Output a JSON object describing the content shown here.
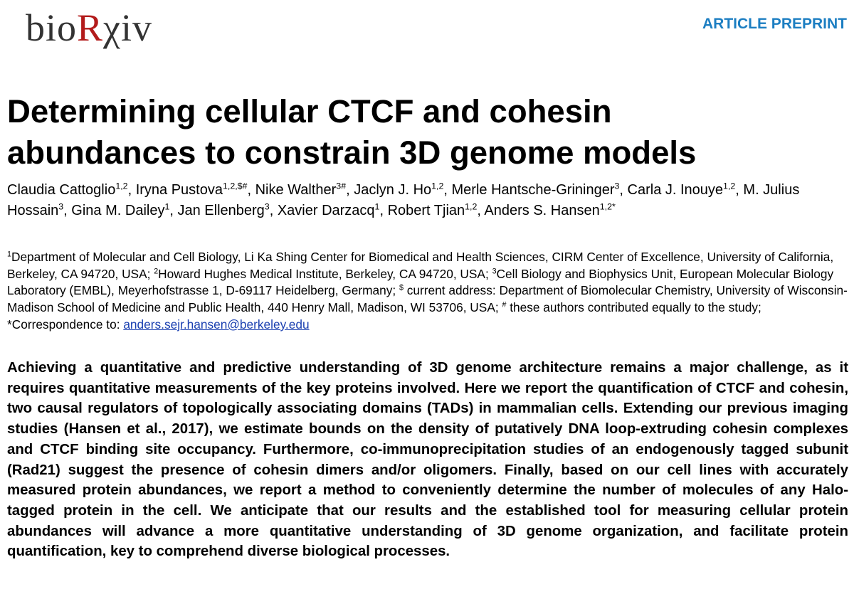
{
  "header": {
    "logo": [
      "bio",
      "R",
      "χiv"
    ],
    "label": "ARTICLE PREPRINT"
  },
  "title": "Determining cellular CTCF and cohesin abundances to constrain 3D genome models",
  "authors": {
    "separator": ", ",
    "list": [
      {
        "name": "Claudia Cattoglio",
        "sup": "1,2"
      },
      {
        "name": "Iryna Pustova",
        "sup": "1,2,$#"
      },
      {
        "name": "Nike Walther",
        "sup": "3#"
      },
      {
        "name": "Jaclyn J. Ho",
        "sup": "1,2"
      },
      {
        "name": "Merle Hantsche-Grininger",
        "sup": "3"
      },
      {
        "name": "Carla J. Inouye",
        "sup": "1,2"
      },
      {
        "name": "M. Julius Hossain",
        "sup": "3"
      },
      {
        "name": "Gina M. Dailey",
        "sup": "1"
      },
      {
        "name": "Jan Ellenberg",
        "sup": "3"
      },
      {
        "name": "Xavier Darzacq",
        "sup": "1"
      },
      {
        "name": "Robert Tjian",
        "sup": "1,2"
      },
      {
        "name": "Anders S. Hansen",
        "sup": "1,2*"
      }
    ]
  },
  "affiliations": {
    "items": [
      {
        "sup": "1",
        "text": "Department of Molecular and Cell Biology, Li Ka Shing Center for Biomedical and Health Sciences, CIRM Center of Excellence, University of California, Berkeley, CA 94720, USA; "
      },
      {
        "sup": "2",
        "text": "Howard Hughes Medical Institute, Berkeley, CA 94720, USA; "
      },
      {
        "sup": "3",
        "text": "Cell Biology and Biophysics Unit, European Molecular Biology Laboratory (EMBL), Meyerhofstrasse 1, D-69117 Heidelberg, Germany; "
      },
      {
        "sup": "$",
        "text": " current address: Department of Biomolecular Chemistry, University of Wisconsin-Madison School of Medicine and Public Health, 440 Henry Mall, Madison, WI 53706, USA; "
      },
      {
        "sup": "#",
        "text": " these authors contributed equally to the study; *Correspondence to: "
      }
    ],
    "email": "anders.sejr.hansen@berkeley.edu"
  },
  "abstract": "Achieving a quantitative and predictive understanding of 3D genome architecture remains a major challenge, as it requires quantitative measurements of the key proteins involved. Here we report the quantification of CTCF and cohesin, two causal regulators of topologically associating domains (TADs) in mammalian cells. Extending our previous imaging studies (Hansen et al., 2017), we estimate bounds on the density of putatively DNA loop-extruding cohesin complexes and CTCF binding site occupancy. Furthermore, co-immunoprecipitation studies of an endogenously tagged subunit (Rad21) suggest the presence of cohesin dimers and/or oligomers. Finally, based on our cell lines with accurately measured protein abundances, we report a method to conveniently determine the number of molecules of any Halo-tagged protein in the cell. We anticipate that our results and the established tool for measuring cellular protein abundances will advance a more quantitative understanding of 3D genome organization, and facilitate protein quantification, key to comprehend diverse biological processes."
}
